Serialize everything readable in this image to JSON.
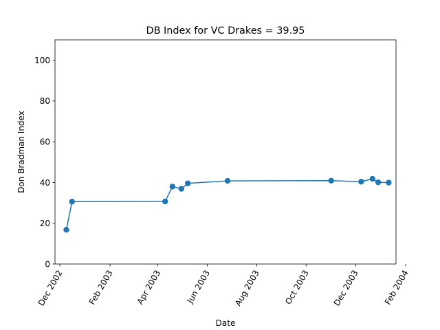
{
  "chart_data": {
    "type": "line",
    "title": "DB Index for VC Drakes = 39.95",
    "xlabel": "Date",
    "ylabel": "Don Bradman Index",
    "x_type": "date",
    "xlim": [
      "2002-11-25",
      "2004-01-20"
    ],
    "ylim": [
      0,
      110
    ],
    "x_ticks": [
      {
        "date": "2002-12-01",
        "label": "Dec 2002"
      },
      {
        "date": "2003-02-01",
        "label": "Feb 2003"
      },
      {
        "date": "2003-04-01",
        "label": "Apr 2003"
      },
      {
        "date": "2003-06-01",
        "label": "Jun 2003"
      },
      {
        "date": "2003-08-01",
        "label": "Aug 2003"
      },
      {
        "date": "2003-10-01",
        "label": "Oct 2003"
      },
      {
        "date": "2003-12-01",
        "label": "Dec 2003"
      },
      {
        "date": "2004-02-01",
        "label": "Feb 2004"
      }
    ],
    "y_ticks": [
      0,
      20,
      40,
      60,
      80,
      100
    ],
    "grid": false,
    "line_color": "#1f77b4",
    "series": [
      {
        "points": [
          {
            "x": "2002-12-09",
            "y": 16.8
          },
          {
            "x": "2002-12-16",
            "y": 30.6
          },
          {
            "x": "2003-04-10",
            "y": 30.7
          },
          {
            "x": "2003-04-19",
            "y": 38.0
          },
          {
            "x": "2003-04-30",
            "y": 36.9
          },
          {
            "x": "2003-05-08",
            "y": 39.6
          },
          {
            "x": "2003-06-26",
            "y": 40.8
          },
          {
            "x": "2003-11-01",
            "y": 40.9
          },
          {
            "x": "2003-12-08",
            "y": 40.4
          },
          {
            "x": "2003-12-22",
            "y": 41.8
          },
          {
            "x": "2003-12-29",
            "y": 40.1
          },
          {
            "x": "2004-01-11",
            "y": 39.95
          }
        ]
      }
    ]
  }
}
